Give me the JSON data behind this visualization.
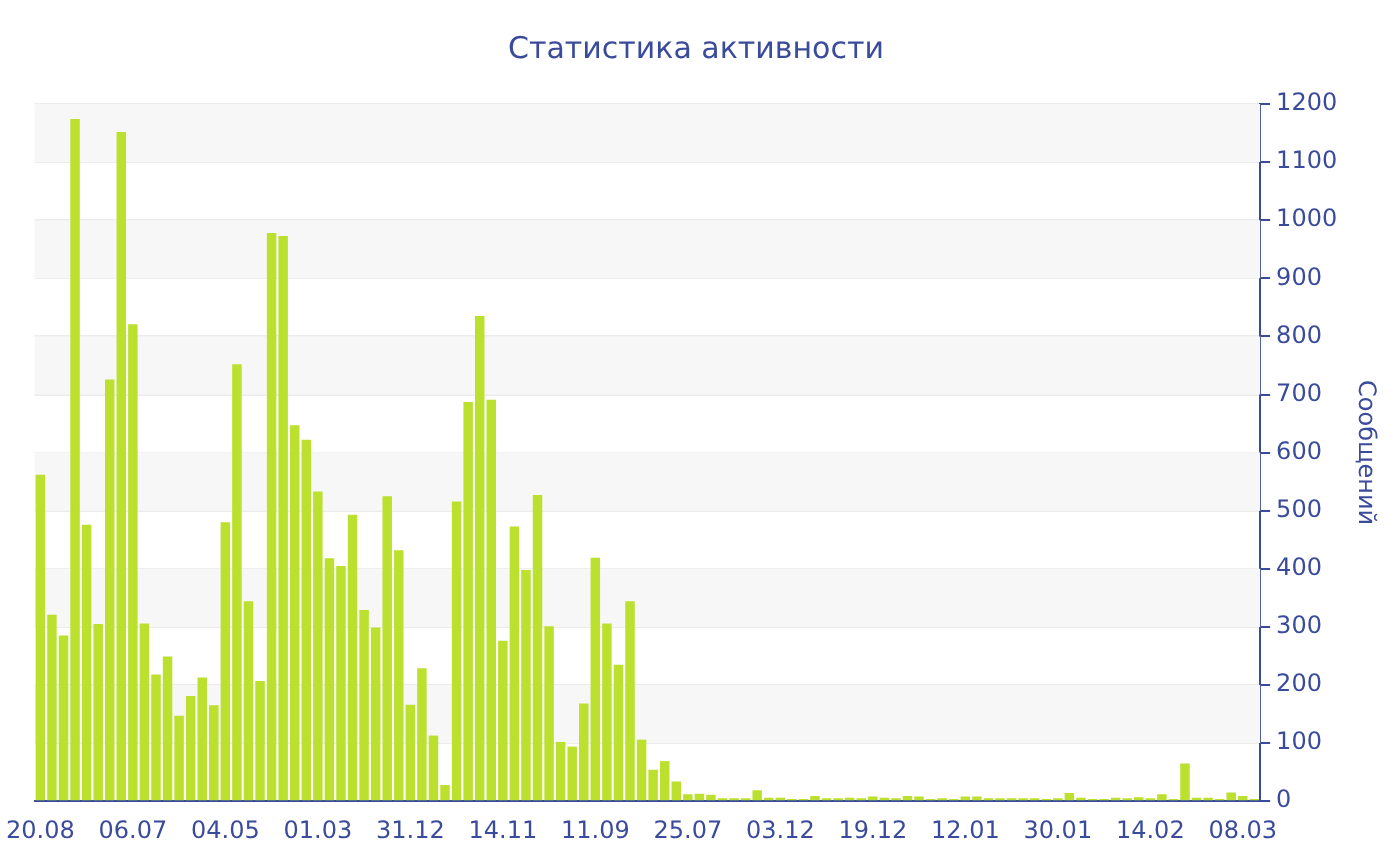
{
  "chart_data": {
    "type": "bar",
    "title": "Статистика активности",
    "ylabel": "Сообщений",
    "categories": [
      "20.08",
      null,
      null,
      null,
      null,
      null,
      null,
      null,
      "06.07",
      null,
      null,
      null,
      null,
      null,
      null,
      null,
      "04.05",
      null,
      null,
      null,
      null,
      null,
      null,
      null,
      "01.03",
      null,
      null,
      null,
      null,
      null,
      null,
      null,
      "31.12",
      null,
      null,
      null,
      null,
      null,
      null,
      null,
      "14.11",
      null,
      null,
      null,
      null,
      null,
      null,
      null,
      "11.09",
      null,
      null,
      null,
      null,
      null,
      null,
      null,
      "25.07",
      null,
      null,
      null,
      null,
      null,
      null,
      null,
      "03.12",
      null,
      null,
      null,
      null,
      null,
      null,
      null,
      "19.12",
      null,
      null,
      null,
      null,
      null,
      null,
      null,
      "12.01",
      null,
      null,
      null,
      null,
      null,
      null,
      null,
      "30.01",
      null,
      null,
      null,
      null,
      null,
      null,
      null,
      "14.02",
      null,
      null,
      null,
      null,
      null,
      null,
      null,
      "08.03",
      null
    ],
    "series": [
      {
        "color": "#bbe02e",
        "values": [
          562,
          321,
          285,
          1174,
          476,
          305,
          726,
          1152,
          821,
          306,
          218,
          249,
          147,
          181,
          213,
          165,
          480,
          752,
          344,
          207,
          978,
          973,
          647,
          622,
          533,
          418,
          405,
          493,
          329,
          299,
          525,
          432,
          166,
          229,
          113,
          28,
          516,
          687,
          835,
          691,
          276,
          473,
          398,
          527,
          301,
          102,
          94,
          168,
          419,
          306,
          235,
          344,
          106,
          54,
          69,
          34,
          12,
          13,
          11,
          5,
          5,
          5,
          19,
          6,
          6,
          4,
          4,
          9,
          5,
          5,
          6,
          5,
          8,
          6,
          5,
          9,
          8,
          4,
          5,
          4,
          8,
          8,
          5,
          5,
          5,
          5,
          5,
          4,
          5,
          14,
          6,
          4,
          4,
          6,
          5,
          7,
          5,
          12,
          4,
          65,
          6,
          6,
          4,
          15,
          9,
          4
        ]
      }
    ],
    "ylim": [
      0,
      1200
    ],
    "yticks": [
      0,
      100,
      200,
      300,
      400,
      500,
      600,
      700,
      800,
      900,
      1000,
      1100,
      1200
    ],
    "grid": "y"
  }
}
